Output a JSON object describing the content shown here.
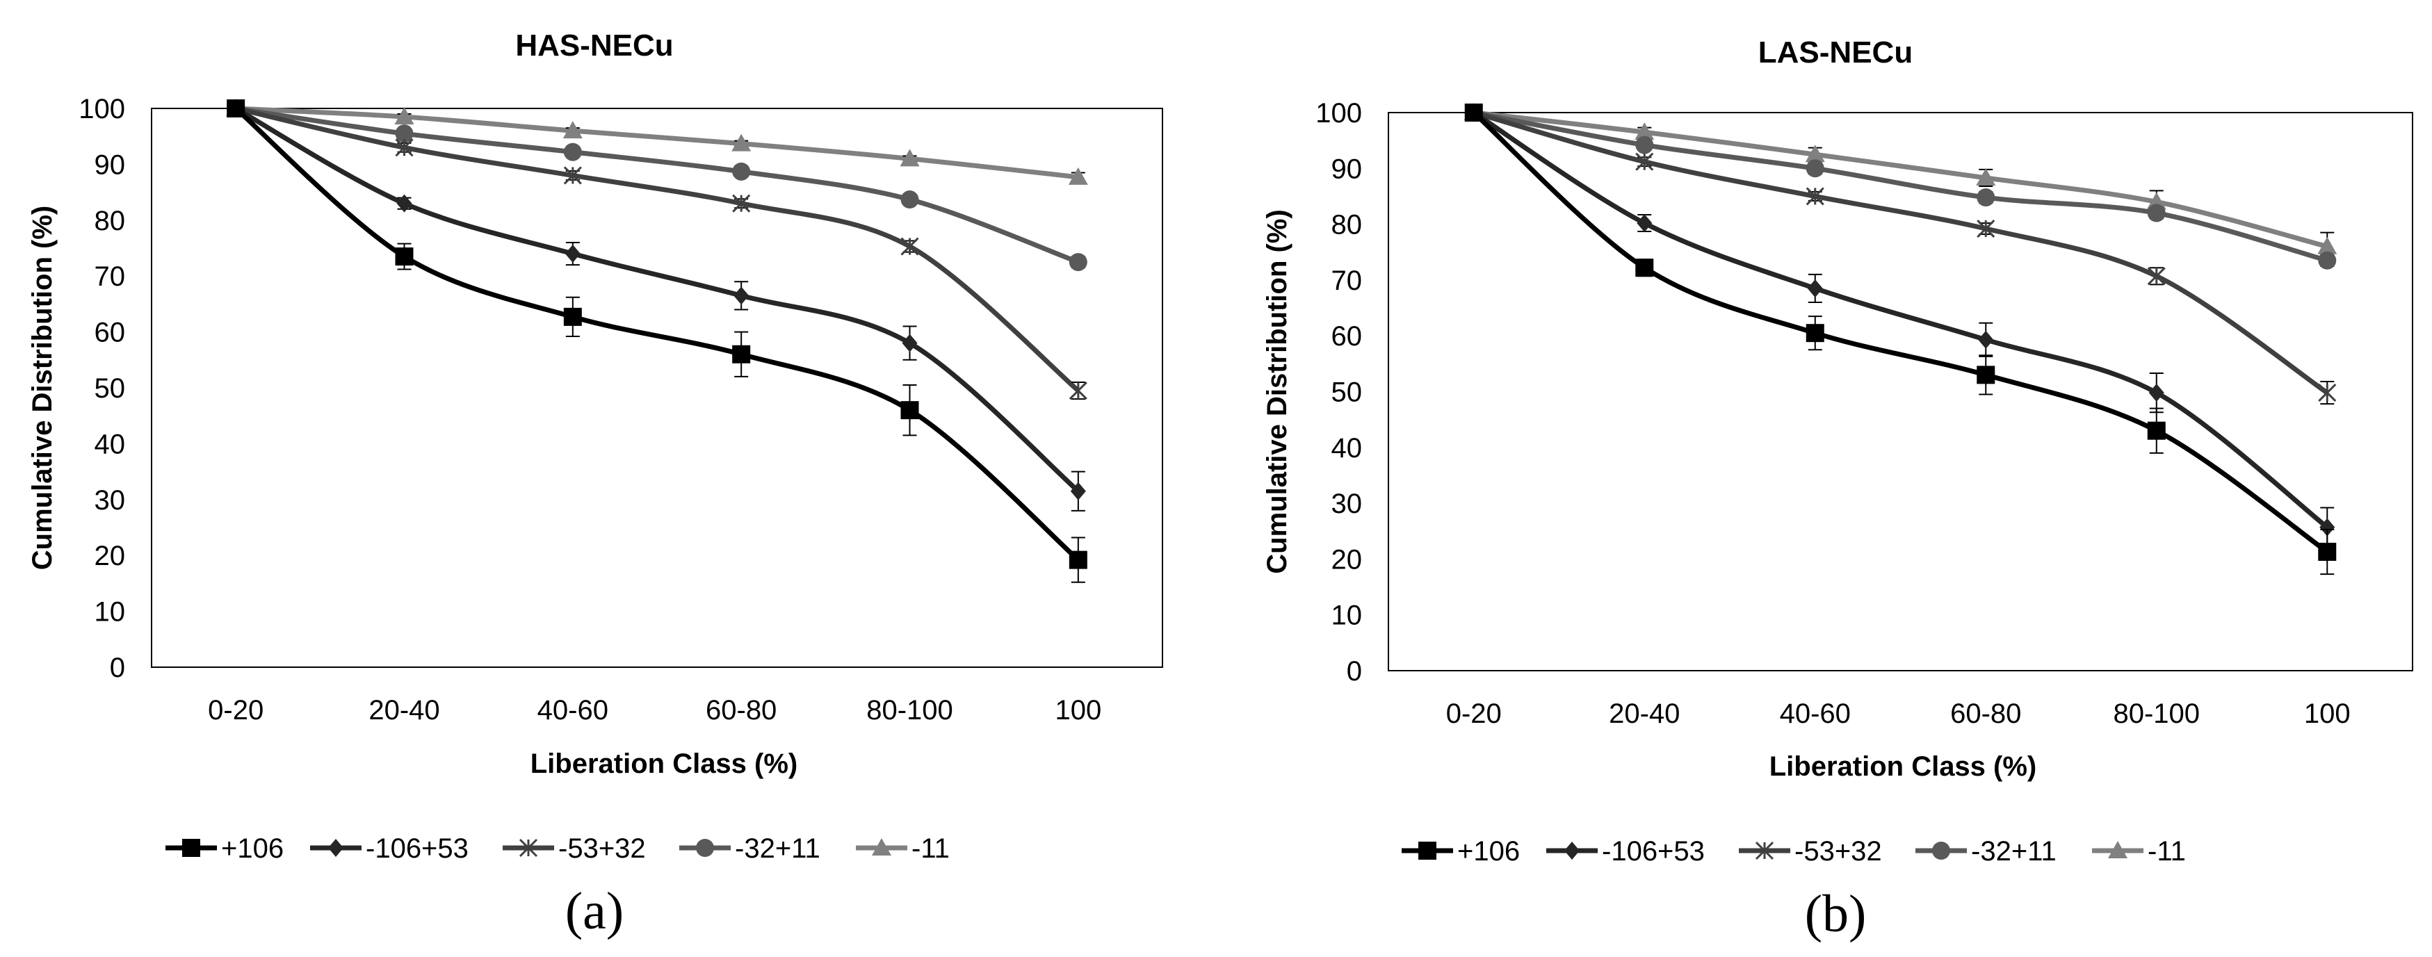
{
  "chart_data": [
    {
      "type": "line",
      "panel_label": "(a)",
      "title": "HAS-NECu",
      "xlabel": "Liberation Class (%)",
      "ylabel": "Cumulative Distribution (%)",
      "categories": [
        "0-20",
        "20-40",
        "40-60",
        "60-80",
        "80-100",
        "100"
      ],
      "ylim": [
        0,
        100
      ],
      "yticks": [
        "0",
        "10",
        "20",
        "30",
        "40",
        "50",
        "60",
        "70",
        "80",
        "90",
        "100"
      ],
      "grid": false,
      "legend_position": "bottom",
      "series": [
        {
          "name": "+106",
          "marker": "square",
          "color": "#000000",
          "values": [
            100,
            73.5,
            62.7,
            56,
            46,
            19.2
          ],
          "errors": [
            0,
            2.3,
            3.5,
            4,
            4.5,
            4
          ]
        },
        {
          "name": "-106+53",
          "marker": "diamond",
          "color": "#262626",
          "values": [
            100,
            83,
            74,
            66.5,
            58,
            31.5
          ],
          "errors": [
            0,
            1,
            2,
            2.5,
            3,
            3.5
          ]
        },
        {
          "name": "-53+32",
          "marker": "asterisk",
          "color": "#404040",
          "values": [
            100,
            93,
            88,
            83,
            75.3,
            49.5
          ],
          "errors": [
            0,
            0.8,
            0.8,
            0.8,
            1,
            1.5
          ]
        },
        {
          "name": "-32+11",
          "marker": "circle",
          "color": "#595959",
          "values": [
            100,
            95.5,
            92.2,
            88.7,
            83.7,
            72.5
          ],
          "errors": [
            0,
            0.5,
            0.5,
            0.5,
            0.5,
            1
          ]
        },
        {
          "name": "-11",
          "marker": "triangle",
          "color": "#808080",
          "values": [
            100,
            98.5,
            96,
            93.7,
            91,
            87.7
          ],
          "errors": [
            0,
            0.5,
            0.5,
            0.5,
            0.5,
            0.8
          ]
        }
      ]
    },
    {
      "type": "line",
      "panel_label": "(b)",
      "title": "LAS-NECu",
      "xlabel": "Liberation Class (%)",
      "ylabel": "Cumulative Distribution (%)",
      "categories": [
        "0-20",
        "20-40",
        "40-60",
        "60-80",
        "80-100",
        "100"
      ],
      "ylim": [
        0,
        100
      ],
      "yticks": [
        "0",
        "10",
        "20",
        "30",
        "40",
        "50",
        "60",
        "70",
        "80",
        "90",
        "100"
      ],
      "grid": false,
      "legend_position": "bottom",
      "series": [
        {
          "name": "+106",
          "marker": "square",
          "color": "#000000",
          "values": [
            100,
            72.2,
            60.5,
            53,
            43,
            21.3
          ],
          "errors": [
            0,
            1.5,
            3,
            3.5,
            4,
            4
          ]
        },
        {
          "name": "-106+53",
          "marker": "diamond",
          "color": "#262626",
          "values": [
            100,
            80.2,
            68.5,
            59.3,
            49.8,
            25.7
          ],
          "errors": [
            0,
            1.5,
            2.5,
            3,
            3.5,
            3.5
          ]
        },
        {
          "name": "-53+32",
          "marker": "asterisk",
          "color": "#404040",
          "values": [
            100,
            91.2,
            85,
            79.2,
            70.7,
            49.8
          ],
          "errors": [
            0,
            0.8,
            0.8,
            1,
            1.5,
            2
          ]
        },
        {
          "name": "-32+11",
          "marker": "circle",
          "color": "#595959",
          "values": [
            100,
            94.2,
            90,
            84.8,
            82,
            73.5
          ],
          "errors": [
            0,
            0.5,
            1,
            1,
            1,
            1
          ]
        },
        {
          "name": "-11",
          "marker": "triangle",
          "color": "#808080",
          "values": [
            100,
            96.5,
            92.5,
            88.3,
            84,
            76
          ],
          "errors": [
            0,
            0.8,
            1.2,
            1.5,
            2,
            2.5
          ]
        }
      ]
    }
  ]
}
